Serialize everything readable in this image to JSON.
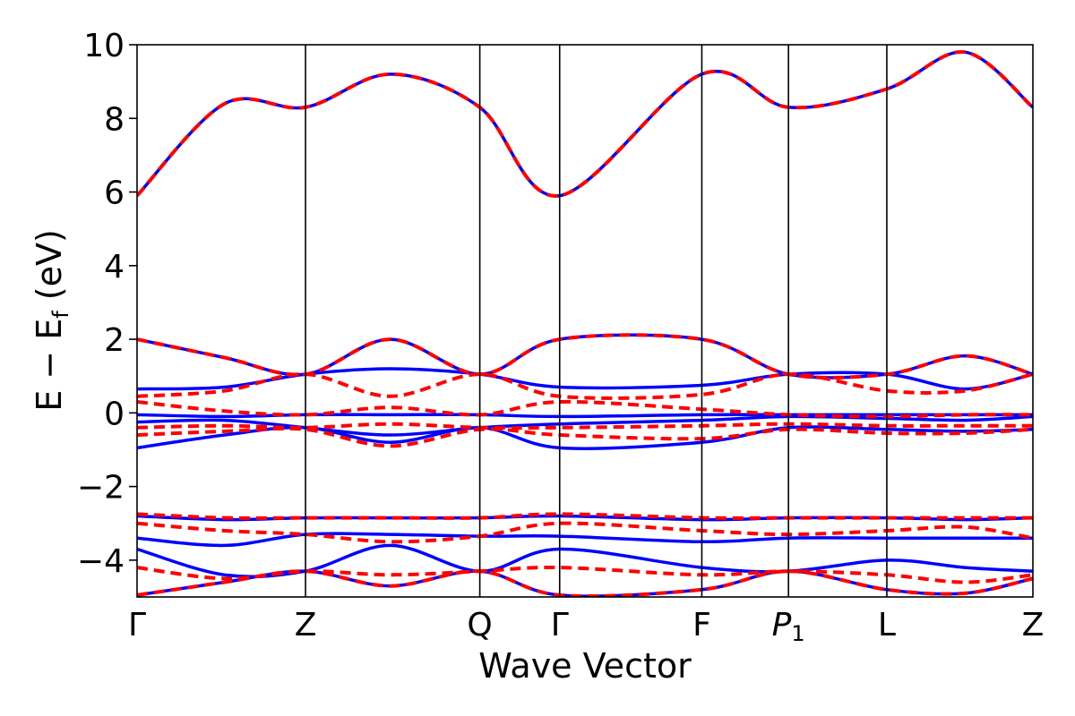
{
  "chart_data": {
    "type": "line",
    "title": "",
    "xlabel": "Wave Vector",
    "ylabel_main": "E − E",
    "ylabel_sub": "f",
    "ylabel_unit": " (eV)",
    "ylim": [
      -5,
      10
    ],
    "xlim": [
      0,
      9.2
    ],
    "grid": false,
    "yticks": [
      -4,
      -2,
      0,
      2,
      4,
      6,
      8,
      10
    ],
    "ytick_labels": [
      "−4",
      "−2",
      "0",
      "2",
      "4",
      "6",
      "8",
      "10"
    ],
    "kpoints": [
      {
        "label": "Γ",
        "x": 0
      },
      {
        "label": "Z",
        "x": 1.73
      },
      {
        "label": "Q",
        "x": 3.52
      },
      {
        "label": "Γ",
        "x": 4.34
      },
      {
        "label": "F",
        "x": 5.8
      },
      {
        "label": "P",
        "sub": "1",
        "italic": true,
        "x": 6.69
      },
      {
        "label": "L",
        "x": 7.7
      },
      {
        "label": "Z",
        "x": 9.2
      }
    ],
    "colors": {
      "series_a": "#0000ff",
      "series_b": "#ff0000"
    },
    "series": [
      {
        "style": "solid",
        "color": "#0000ff",
        "bands": [
          {
            "x": [
              0,
              0.9,
              1.73,
              2.6,
              3.52,
              4.34,
              5.8,
              6.69,
              7.7,
              8.5,
              9.2
            ],
            "y": [
              5.9,
              8.4,
              8.3,
              9.2,
              8.3,
              5.9,
              9.2,
              8.3,
              8.8,
              9.8,
              8.3
            ]
          },
          {
            "x": [
              0,
              0.9,
              1.73,
              2.6,
              3.52,
              4.34,
              5.8,
              6.69,
              7.7,
              8.5,
              9.2
            ],
            "y": [
              2.0,
              1.5,
              1.05,
              2.0,
              1.05,
              2.0,
              2.0,
              1.05,
              1.05,
              1.55,
              1.05
            ]
          },
          {
            "x": [
              0,
              0.9,
              1.73,
              2.6,
              3.52,
              4.34,
              5.8,
              6.69,
              7.7,
              8.5,
              9.2
            ],
            "y": [
              0.65,
              0.7,
              1.05,
              1.2,
              1.05,
              0.7,
              0.75,
              1.05,
              1.05,
              0.65,
              1.05
            ]
          },
          {
            "x": [
              0,
              0.9,
              1.73,
              2.6,
              3.52,
              4.34,
              5.8,
              6.69,
              7.7,
              8.5,
              9.2
            ],
            "y": [
              -0.05,
              -0.1,
              -0.05,
              -0.05,
              -0.05,
              -0.1,
              -0.05,
              -0.05,
              -0.05,
              -0.05,
              -0.05
            ]
          },
          {
            "x": [
              0,
              0.9,
              1.73,
              2.6,
              3.52,
              4.34,
              5.8,
              6.69,
              7.7,
              8.5,
              9.2
            ],
            "y": [
              -0.25,
              -0.2,
              -0.4,
              -0.6,
              -0.4,
              -0.3,
              -0.2,
              -0.1,
              -0.15,
              -0.2,
              -0.1
            ]
          },
          {
            "x": [
              0,
              0.9,
              1.73,
              2.6,
              3.52,
              4.34,
              5.8,
              6.69,
              7.7,
              8.5,
              9.2
            ],
            "y": [
              -0.95,
              -0.6,
              -0.4,
              -0.8,
              -0.4,
              -0.95,
              -0.8,
              -0.4,
              -0.45,
              -0.5,
              -0.45
            ]
          },
          {
            "x": [
              0,
              0.9,
              1.73,
              2.6,
              3.52,
              4.34,
              5.8,
              6.69,
              7.7,
              8.5,
              9.2
            ],
            "y": [
              -2.8,
              -2.9,
              -2.85,
              -2.85,
              -2.85,
              -2.8,
              -2.9,
              -2.85,
              -2.85,
              -2.9,
              -2.85
            ]
          },
          {
            "x": [
              0,
              0.9,
              1.73,
              2.6,
              3.52,
              4.34,
              5.8,
              6.69,
              7.7,
              8.5,
              9.2
            ],
            "y": [
              -3.4,
              -3.6,
              -3.3,
              -3.3,
              -3.35,
              -3.35,
              -3.5,
              -3.4,
              -3.4,
              -3.4,
              -3.4
            ]
          },
          {
            "x": [
              0,
              0.9,
              1.73,
              2.6,
              3.52,
              4.34,
              5.8,
              6.69,
              7.7,
              8.5,
              9.2
            ],
            "y": [
              -3.7,
              -4.4,
              -4.3,
              -3.6,
              -4.3,
              -3.7,
              -4.2,
              -4.3,
              -4.0,
              -4.2,
              -4.3
            ]
          },
          {
            "x": [
              0,
              0.9,
              1.73,
              2.6,
              3.52,
              4.34,
              5.8,
              6.69,
              7.7,
              8.5,
              9.2
            ],
            "y": [
              -4.95,
              -4.6,
              -4.3,
              -4.7,
              -4.3,
              -4.95,
              -4.8,
              -4.3,
              -4.8,
              -4.9,
              -4.5
            ]
          }
        ]
      },
      {
        "style": "dashed",
        "color": "#ff0000",
        "bands": [
          {
            "x": [
              0,
              0.9,
              1.73,
              2.6,
              3.52,
              4.34,
              5.8,
              6.69,
              7.7,
              8.5,
              9.2
            ],
            "y": [
              5.9,
              8.4,
              8.3,
              9.2,
              8.3,
              5.9,
              9.2,
              8.3,
              8.8,
              9.8,
              8.3
            ]
          },
          {
            "x": [
              0,
              0.9,
              1.73,
              2.6,
              3.52,
              4.34,
              5.8,
              6.69,
              7.7,
              8.5,
              9.2
            ],
            "y": [
              2.0,
              1.5,
              1.05,
              2.0,
              1.05,
              2.0,
              2.0,
              1.05,
              1.05,
              1.55,
              1.05
            ]
          },
          {
            "x": [
              0,
              0.9,
              1.73,
              2.6,
              3.52,
              4.34,
              5.8,
              6.69,
              7.7,
              8.5,
              9.2
            ],
            "y": [
              0.45,
              0.6,
              1.05,
              0.45,
              1.05,
              0.45,
              0.5,
              1.05,
              0.6,
              0.6,
              1.05
            ]
          },
          {
            "x": [
              0,
              0.9,
              1.73,
              2.6,
              3.52,
              4.34,
              5.8,
              6.69,
              7.7,
              8.5,
              9.2
            ],
            "y": [
              0.3,
              0.05,
              -0.05,
              0.15,
              -0.05,
              0.3,
              0.1,
              -0.05,
              -0.1,
              -0.05,
              -0.05
            ]
          },
          {
            "x": [
              0,
              0.9,
              1.73,
              2.6,
              3.52,
              4.34,
              5.8,
              6.69,
              7.7,
              8.5,
              9.2
            ],
            "y": [
              -0.4,
              -0.35,
              -0.4,
              -0.3,
              -0.4,
              -0.4,
              -0.35,
              -0.3,
              -0.35,
              -0.35,
              -0.35
            ]
          },
          {
            "x": [
              0,
              0.9,
              1.73,
              2.6,
              3.52,
              4.34,
              5.8,
              6.69,
              7.7,
              8.5,
              9.2
            ],
            "y": [
              -0.6,
              -0.5,
              -0.45,
              -0.9,
              -0.45,
              -0.6,
              -0.7,
              -0.45,
              -0.55,
              -0.55,
              -0.45
            ]
          },
          {
            "x": [
              0,
              0.9,
              1.73,
              2.6,
              3.52,
              4.34,
              5.8,
              6.69,
              7.7,
              8.5,
              9.2
            ],
            "y": [
              -2.75,
              -2.85,
              -2.85,
              -2.85,
              -2.85,
              -2.75,
              -2.85,
              -2.85,
              -2.85,
              -2.85,
              -2.85
            ]
          },
          {
            "x": [
              0,
              0.9,
              1.73,
              2.6,
              3.52,
              4.34,
              5.8,
              6.69,
              7.7,
              8.5,
              9.2
            ],
            "y": [
              -3.0,
              -3.2,
              -3.3,
              -3.5,
              -3.35,
              -3.0,
              -3.2,
              -3.3,
              -3.2,
              -3.1,
              -3.4
            ]
          },
          {
            "x": [
              0,
              0.9,
              1.73,
              2.6,
              3.52,
              4.34,
              5.8,
              6.69,
              7.7,
              8.5,
              9.2
            ],
            "y": [
              -4.2,
              -4.5,
              -4.3,
              -4.4,
              -4.3,
              -4.2,
              -4.4,
              -4.3,
              -4.4,
              -4.6,
              -4.4
            ]
          },
          {
            "x": [
              0,
              0.9,
              1.73,
              2.6,
              3.52,
              4.34,
              5.8,
              6.69,
              7.7,
              8.5,
              9.2
            ],
            "y": [
              -4.95,
              -4.6,
              -4.3,
              -4.7,
              -4.3,
              -4.95,
              -4.8,
              -4.3,
              -4.8,
              -4.9,
              -4.5
            ]
          }
        ]
      }
    ]
  }
}
